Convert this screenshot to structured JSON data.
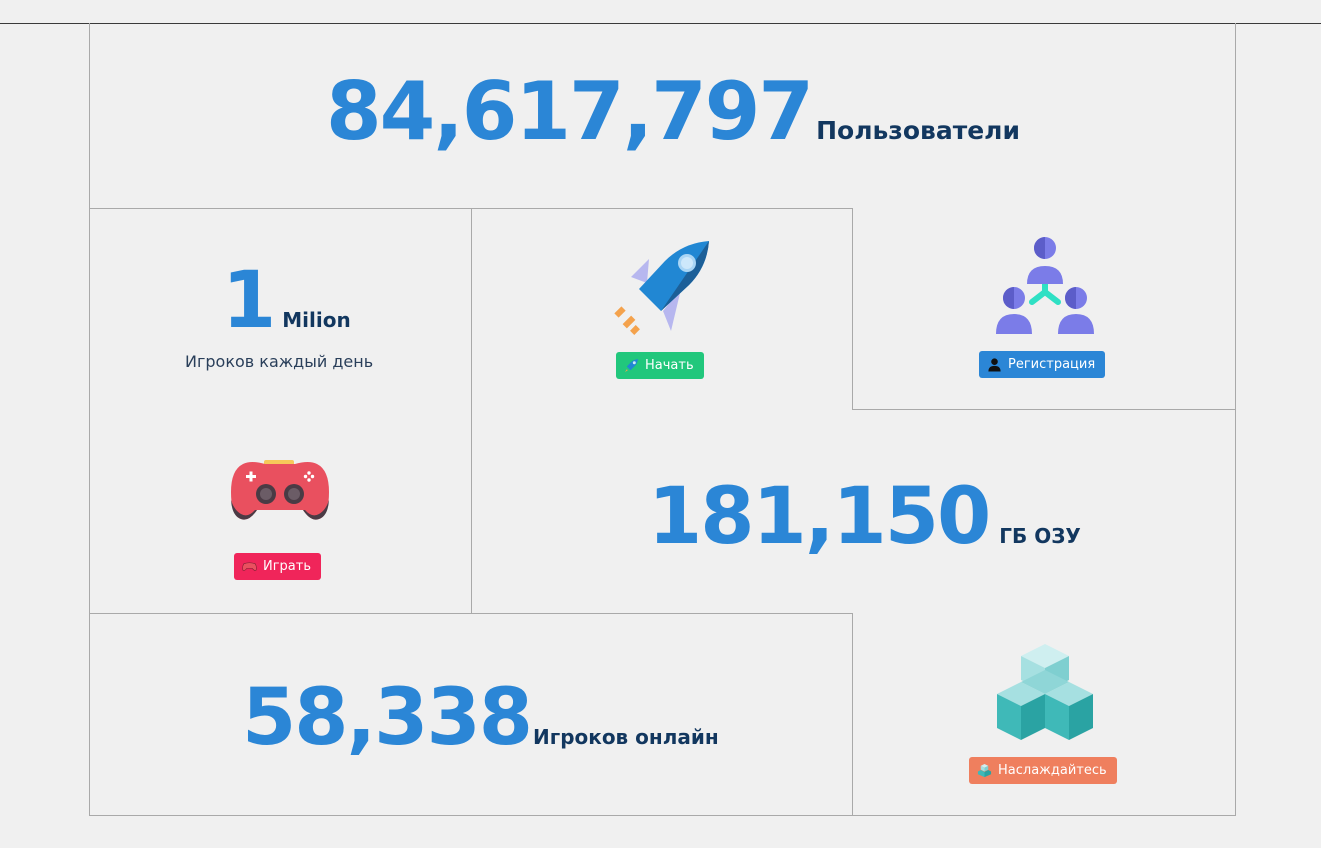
{
  "stats": {
    "users": {
      "value": "84,617,797",
      "label": "Пользователи"
    },
    "daily": {
      "value": "1",
      "unit": "Milion",
      "caption": "Игроков каждый день"
    },
    "ram": {
      "value": "181,150",
      "label": "ГБ ОЗУ"
    },
    "online": {
      "value": "58,338",
      "label": "Игроков онлайн"
    }
  },
  "buttons": {
    "play": {
      "label": "Играть",
      "color": "#f0255a"
    },
    "start": {
      "label": "Начать",
      "color": "#21c77c"
    },
    "register": {
      "label": "Регистрация",
      "color": "#2b86d6"
    },
    "enjoy": {
      "label": "Наслаждайтесь",
      "color": "#ef7f5e"
    }
  },
  "icons": {
    "gamepad": "gamepad-icon",
    "rocket": "rocket-icon",
    "team": "team-icon",
    "cubes": "cubes-icon"
  },
  "colors": {
    "number": "#2b86d6",
    "label": "#12375f",
    "background": "#f0f0f0",
    "grid_line": "#a9a9a9"
  }
}
